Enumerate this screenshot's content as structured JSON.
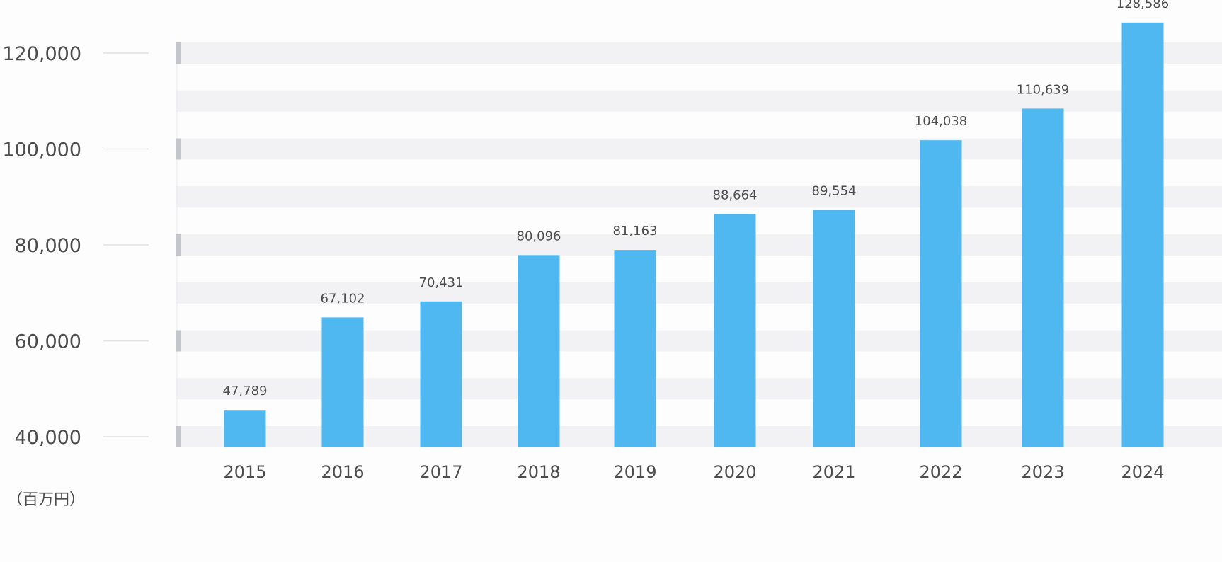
{
  "unit_label": "（百万円）",
  "colors": {
    "bar": "#4fb8f1",
    "band": "#f2f1f4",
    "tick_marker": "#c4c6cc",
    "text": "#4d4d4d"
  },
  "chart_data": {
    "type": "bar",
    "categories": [
      "2015",
      "2016",
      "2017",
      "2018",
      "2019",
      "2020",
      "2021",
      "2022",
      "2023",
      "2024"
    ],
    "values": [
      47789,
      67102,
      70431,
      80096,
      81163,
      88664,
      89554,
      104038,
      110639,
      128586
    ],
    "value_labels": [
      "47,789",
      "67,102",
      "70,431",
      "80,096",
      "81,163",
      "88,664",
      "89,554",
      "104,038",
      "110,639",
      "128,586"
    ],
    "yticks": [
      40000,
      60000,
      80000,
      100000,
      120000
    ],
    "ytick_labels": [
      "40,000",
      "60,000",
      "80,000",
      "100,000",
      "120,000"
    ],
    "ylim": [
      40000,
      124000
    ],
    "grid": "horizontal alternating bands",
    "title": "",
    "xlabel": "",
    "ylabel": ""
  }
}
